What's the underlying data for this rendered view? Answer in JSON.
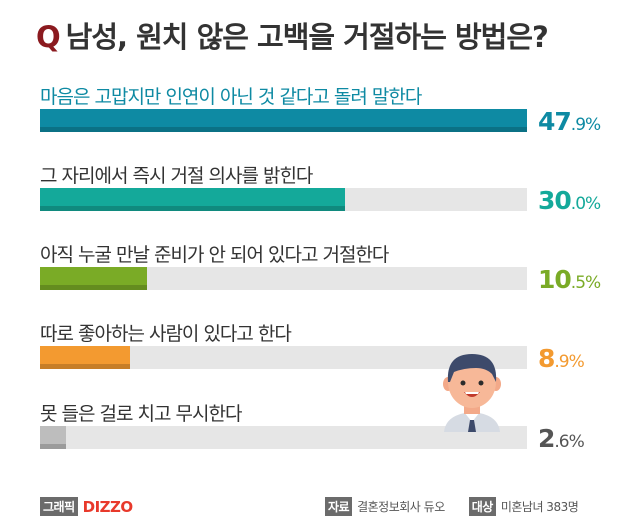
{
  "title": {
    "q": "Q",
    "text": "남성, 원치 않은 고백을 거절하는 방법은?"
  },
  "chart_data": {
    "type": "bar",
    "orientation": "horizontal",
    "title": "남성, 원치 않은 고백을 거절하는 방법은?",
    "unit": "%",
    "categories": [
      "마음은 고맙지만 인연이 아닌 것 같다고 돌려 말한다",
      "그 자리에서 즉시 거절 의사를 밝힌다",
      "아직 누굴 만날 준비가 안 되어 있다고 거절한다",
      "따로 좋아하는 사람이 있다고 한다",
      "못 들은 걸로 치고 무시한다"
    ],
    "values": [
      47.9,
      30.0,
      10.5,
      8.9,
      2.6
    ],
    "value_labels": [
      {
        "int": "47",
        "dec": ".9%"
      },
      {
        "int": "30",
        "dec": ".0%"
      },
      {
        "int": "10",
        "dec": ".5%"
      },
      {
        "int": "8",
        "dec": ".9%"
      },
      {
        "int": "2",
        "dec": ".6%"
      }
    ],
    "colors": [
      "#0e8aa3",
      "#14a99a",
      "#7aab26",
      "#f39a30",
      "#bdbdbd"
    ],
    "value_colors": [
      "#0e8aa3",
      "#14a99a",
      "#7aab26",
      "#f39a30",
      "#555555"
    ],
    "track_color": "#e6e6e6",
    "grid": false
  },
  "footer": {
    "graphic_tag": "그래픽",
    "brand": "DIZZO",
    "source_tag": "자료",
    "source": "결혼정보회사 듀오",
    "target_tag": "대상",
    "target": "미혼남녀 383명"
  }
}
